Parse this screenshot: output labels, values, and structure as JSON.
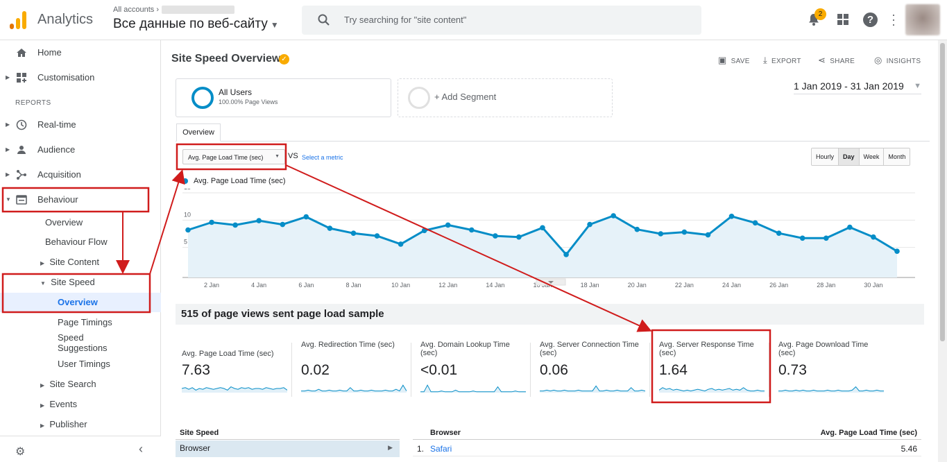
{
  "header": {
    "brand": "Analytics",
    "account_crumb": "All accounts",
    "view_name": "Все данные по веб-сайту",
    "search_placeholder": "Try searching for \"site content\"",
    "notification_count": "2",
    "help_glyph": "?"
  },
  "sidebar": {
    "home": "Home",
    "customisation": "Customisation",
    "reports_heading": "REPORTS",
    "realtime": "Real-time",
    "audience": "Audience",
    "acquisition": "Acquisition",
    "behaviour": "Behaviour",
    "behaviour_children": {
      "overview": "Overview",
      "flow": "Behaviour Flow",
      "site_content": "Site Content",
      "site_speed": "Site Speed",
      "site_speed_overview": "Overview",
      "page_timings": "Page Timings",
      "speed_suggestions_1": "Speed",
      "speed_suggestions_2": "Suggestions",
      "user_timings": "User Timings",
      "site_search": "Site Search",
      "events": "Events",
      "publisher": "Publisher"
    }
  },
  "report": {
    "title": "Site Speed Overview",
    "actions": {
      "save": "SAVE",
      "export": "EXPORT",
      "share": "SHARE",
      "insights": "INSIGHTS"
    },
    "segment": {
      "name": "All Users",
      "sub": "100.00% Page Views",
      "add": "+ Add Segment"
    },
    "date_range": "1 Jan 2019 - 31 Jan 2019",
    "tab": "Overview",
    "metric_select": "Avg. Page Load Time (sec)",
    "vs": "VS",
    "select_metric": "Select a metric",
    "granularity": [
      "Hourly",
      "Day",
      "Week",
      "Month"
    ],
    "granularity_selected": "Day",
    "legend": "Avg. Page Load Time (sec)",
    "sample_text": "515 of page views sent page load sample"
  },
  "chart_data": {
    "type": "line",
    "series": [
      {
        "name": "Avg. Page Load Time (sec)",
        "values": [
          8.2,
          9.6,
          9.1,
          9.9,
          9.2,
          10.6,
          8.5,
          7.6,
          7.1,
          5.6,
          8.1,
          9.1,
          8.2,
          7.1,
          6.9,
          8.6,
          3.7,
          9.2,
          10.8,
          8.3,
          7.5,
          7.8,
          7.3,
          10.7,
          9.5,
          7.6,
          6.7,
          6.7,
          8.7,
          6.9,
          4.3
        ]
      }
    ],
    "x": [
      "1 Jan",
      "2 Jan",
      "3 Jan",
      "4 Jan",
      "5 Jan",
      "6 Jan",
      "7 Jan",
      "8 Jan",
      "9 Jan",
      "10 Jan",
      "11 Jan",
      "12 Jan",
      "13 Jan",
      "14 Jan",
      "15 Jan",
      "16 Jan",
      "17 Jan",
      "18 Jan",
      "19 Jan",
      "20 Jan",
      "21 Jan",
      "22 Jan",
      "23 Jan",
      "24 Jan",
      "25 Jan",
      "26 Jan",
      "27 Jan",
      "28 Jan",
      "29 Jan",
      "30 Jan",
      "31 Jan"
    ],
    "x_tick_labels": [
      "2 Jan",
      "4 Jan",
      "6 Jan",
      "8 Jan",
      "10 Jan",
      "12 Jan",
      "14 Jan",
      "16 Jan",
      "18 Jan",
      "20 Jan",
      "22 Jan",
      "24 Jan",
      "26 Jan",
      "28 Jan",
      "30 Jan"
    ],
    "y_ticks": [
      5,
      10,
      15
    ],
    "ylim": [
      0,
      15
    ],
    "grid": true,
    "area_fill": true,
    "color": "#058dc7"
  },
  "metrics": [
    {
      "label": "Avg. Page Load Time (sec)",
      "value": "7.63",
      "spark": [
        5,
        6,
        4,
        6,
        3,
        5,
        4,
        6,
        5,
        4,
        5,
        6,
        5,
        3,
        7,
        5,
        4,
        6,
        5,
        6,
        4,
        5,
        5,
        4,
        6,
        5,
        4,
        5,
        5,
        6,
        3
      ]
    },
    {
      "label": "Avg. Redirection Time (sec)",
      "value": "0.02",
      "spark": [
        2,
        2,
        3,
        2,
        2,
        4,
        2,
        2,
        3,
        2,
        2,
        3,
        2,
        2,
        6,
        2,
        2,
        3,
        2,
        2,
        3,
        2,
        2,
        2,
        3,
        2,
        2,
        4,
        2,
        9,
        2
      ]
    },
    {
      "label": "Avg. Domain Lookup Time (sec)",
      "value": "<0.01",
      "spark": [
        1,
        1,
        9,
        1,
        1,
        1,
        2,
        1,
        1,
        1,
        3,
        1,
        1,
        1,
        1,
        2,
        1,
        1,
        1,
        1,
        1,
        1,
        7,
        1,
        1,
        1,
        1,
        2,
        1,
        1,
        1
      ]
    },
    {
      "label": "Avg. Server Connection Time (sec)",
      "value": "0.06",
      "spark": [
        2,
        2,
        3,
        2,
        3,
        2,
        2,
        3,
        2,
        2,
        2,
        3,
        2,
        2,
        2,
        2,
        8,
        2,
        2,
        3,
        2,
        2,
        3,
        2,
        2,
        2,
        6,
        2,
        2,
        3,
        2
      ]
    },
    {
      "label": "Avg. Server Response Time (sec)",
      "value": "1.64",
      "spark": [
        3,
        6,
        4,
        5,
        3,
        4,
        3,
        2,
        3,
        2,
        3,
        4,
        3,
        2,
        4,
        5,
        3,
        4,
        3,
        4,
        5,
        3,
        4,
        3,
        6,
        3,
        2,
        2,
        3,
        2,
        2
      ]
    },
    {
      "label": "Avg. Page Download Time (sec)",
      "value": "0.73",
      "spark": [
        2,
        2,
        3,
        2,
        2,
        3,
        2,
        3,
        2,
        2,
        3,
        2,
        2,
        2,
        3,
        2,
        2,
        3,
        2,
        2,
        2,
        3,
        7,
        2,
        2,
        3,
        2,
        2,
        3,
        2,
        2
      ]
    }
  ],
  "table_left": {
    "header": "Site Speed",
    "row": "Browser"
  },
  "table_right": {
    "col_a": "Browser",
    "col_b": "Avg. Page Load Time (sec)",
    "rows": [
      {
        "n": "1.",
        "name": "Safari",
        "value": "5.46"
      }
    ]
  },
  "colors": {
    "accent": "#058dc7",
    "annotation": "#d01c1c",
    "brand_orange": "#f9ab00",
    "brand_dark_orange": "#e37400"
  }
}
